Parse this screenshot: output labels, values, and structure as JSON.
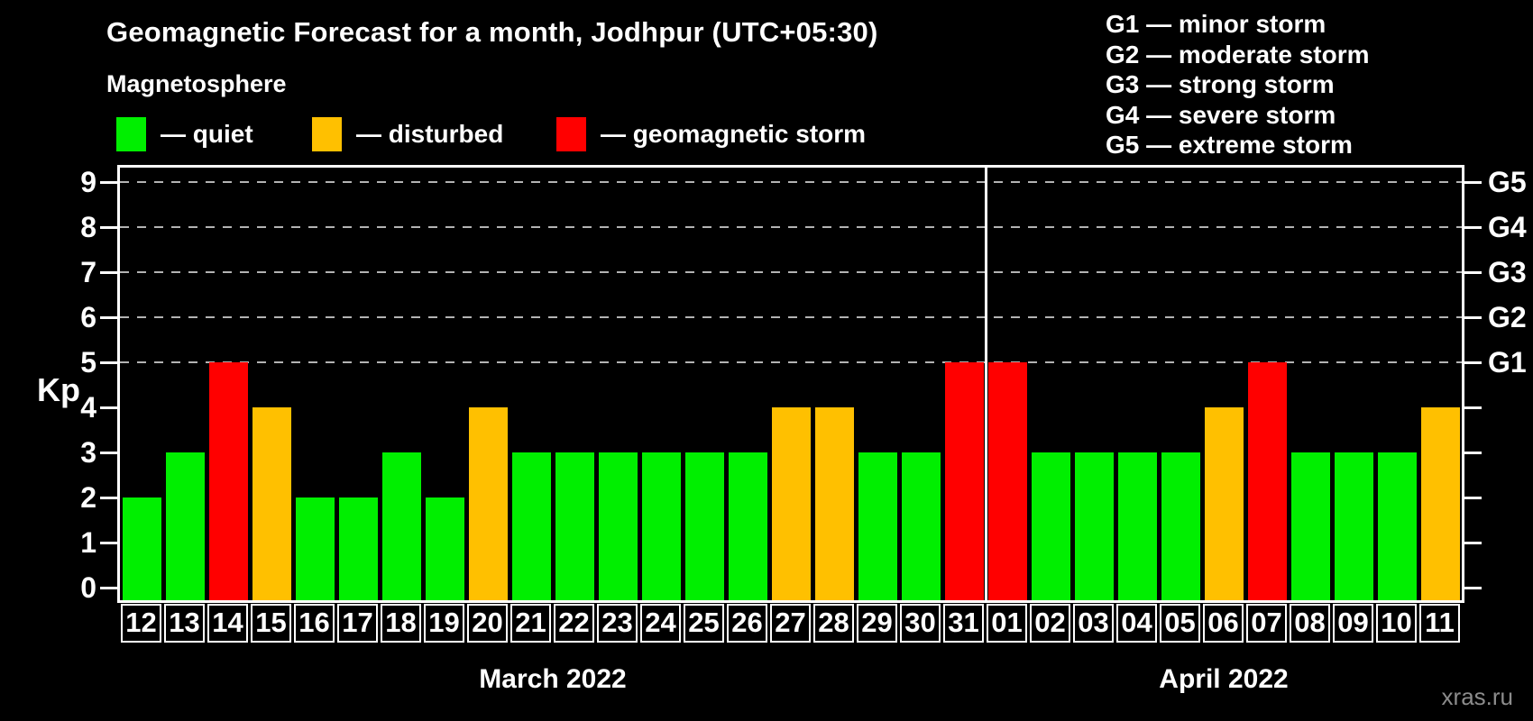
{
  "title": "Geomagnetic Forecast for a month, Jodhpur (UTC+05:30)",
  "subtitle": "Magnetosphere",
  "legend": [
    {
      "key": "quiet",
      "label": "— quiet",
      "color": "#00ef00"
    },
    {
      "key": "disturbed",
      "label": "— disturbed",
      "color": "#ffc000"
    },
    {
      "key": "storm",
      "label": "— geomagnetic storm",
      "color": "#ff0000"
    }
  ],
  "g_legend": [
    "G1 — minor storm",
    "G2 — moderate storm",
    "G3 — strong storm",
    "G4 — severe storm",
    "G5 — extreme storm"
  ],
  "y_axis_label": "Kp",
  "watermark": "xras.ru",
  "chart_data": {
    "type": "bar",
    "title": "Geomagnetic Forecast for a month, Jodhpur (UTC+05:30)",
    "ylabel": "Kp",
    "ylim": [
      0,
      9.4
    ],
    "y_ticks": [
      0,
      1,
      2,
      3,
      4,
      5,
      6,
      7,
      8,
      9
    ],
    "gridlines_at": [
      5,
      6,
      7,
      8,
      9
    ],
    "grid_style": "dashed-horizontal",
    "right_axis_labels": [
      {
        "value": 5,
        "label": "G1"
      },
      {
        "value": 6,
        "label": "G2"
      },
      {
        "value": 7,
        "label": "G3"
      },
      {
        "value": 8,
        "label": "G4"
      },
      {
        "value": 9,
        "label": "G5"
      }
    ],
    "colors": {
      "quiet": "#00ef00",
      "disturbed": "#ffc000",
      "storm": "#ff0000"
    },
    "months": [
      {
        "label": "March 2022",
        "count": 20
      },
      {
        "label": "April 2022",
        "count": 11
      }
    ],
    "categories": [
      "12",
      "13",
      "14",
      "15",
      "16",
      "17",
      "18",
      "19",
      "20",
      "21",
      "22",
      "23",
      "24",
      "25",
      "26",
      "27",
      "28",
      "29",
      "30",
      "31",
      "01",
      "02",
      "03",
      "04",
      "05",
      "06",
      "07",
      "08",
      "09",
      "10",
      "11"
    ],
    "values": [
      2,
      3,
      5,
      4,
      2,
      2,
      3,
      2,
      4,
      3,
      3,
      3,
      3,
      3,
      3,
      4,
      4,
      3,
      3,
      5,
      5,
      3,
      3,
      3,
      3,
      4,
      5,
      3,
      3,
      3,
      4
    ],
    "levels": [
      "quiet",
      "quiet",
      "storm",
      "disturbed",
      "quiet",
      "quiet",
      "quiet",
      "quiet",
      "disturbed",
      "quiet",
      "quiet",
      "quiet",
      "quiet",
      "quiet",
      "quiet",
      "disturbed",
      "disturbed",
      "quiet",
      "quiet",
      "storm",
      "storm",
      "quiet",
      "quiet",
      "quiet",
      "quiet",
      "disturbed",
      "storm",
      "quiet",
      "quiet",
      "quiet",
      "disturbed"
    ]
  }
}
